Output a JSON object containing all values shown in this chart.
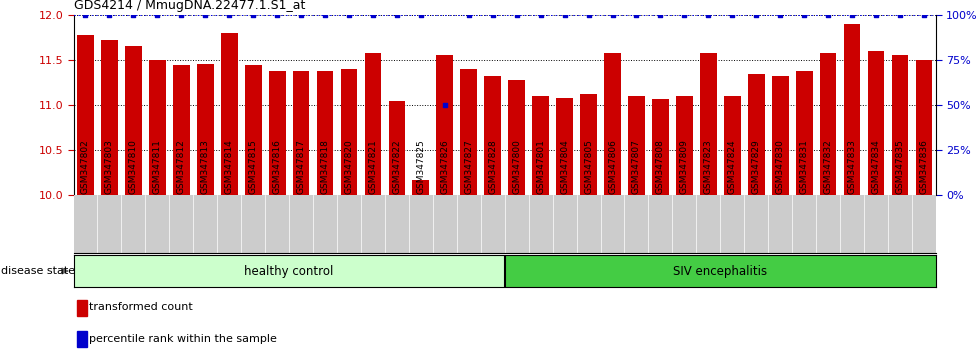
{
  "title": "GDS4214 / MmugDNA.22477.1.S1_at",
  "samples": [
    "GSM347802",
    "GSM347803",
    "GSM347810",
    "GSM347811",
    "GSM347812",
    "GSM347813",
    "GSM347814",
    "GSM347815",
    "GSM347816",
    "GSM347817",
    "GSM347818",
    "GSM347820",
    "GSM347821",
    "GSM347822",
    "GSM347825",
    "GSM347826",
    "GSM347827",
    "GSM347828",
    "GSM347800",
    "GSM347801",
    "GSM347804",
    "GSM347805",
    "GSM347806",
    "GSM347807",
    "GSM347808",
    "GSM347809",
    "GSM347823",
    "GSM347824",
    "GSM347829",
    "GSM347830",
    "GSM347831",
    "GSM347832",
    "GSM347833",
    "GSM347834",
    "GSM347835",
    "GSM347836"
  ],
  "values": [
    11.78,
    11.72,
    11.65,
    11.5,
    11.45,
    11.46,
    11.8,
    11.45,
    11.38,
    11.38,
    11.38,
    11.4,
    11.58,
    11.04,
    10.17,
    11.55,
    11.4,
    11.32,
    11.28,
    11.1,
    11.08,
    11.12,
    11.58,
    11.1,
    11.07,
    11.1,
    11.58,
    11.1,
    11.35,
    11.32,
    11.38,
    11.58,
    11.9,
    11.6,
    11.55,
    11.5
  ],
  "percentile_values": [
    100,
    100,
    100,
    100,
    100,
    100,
    100,
    100,
    100,
    100,
    100,
    100,
    100,
    100,
    100,
    50,
    100,
    100,
    100,
    100,
    100,
    100,
    100,
    100,
    100,
    100,
    100,
    100,
    100,
    100,
    100,
    100,
    100,
    100,
    100,
    100
  ],
  "n_healthy": 18,
  "n_siv": 18,
  "bar_color": "#cc0000",
  "scatter_color": "#0000cc",
  "ylim_left": [
    10,
    12
  ],
  "ylim_right": [
    0,
    100
  ],
  "yticks_left": [
    10,
    10.5,
    11,
    11.5,
    12
  ],
  "yticks_right": [
    0,
    25,
    50,
    75,
    100
  ],
  "healthy_bg": "#ccffcc",
  "siv_bg": "#44cc44",
  "legend_items": [
    "transformed count",
    "percentile rank within the sample"
  ],
  "legend_colors": [
    "#cc0000",
    "#0000cc"
  ],
  "disease_state_label": "disease state"
}
